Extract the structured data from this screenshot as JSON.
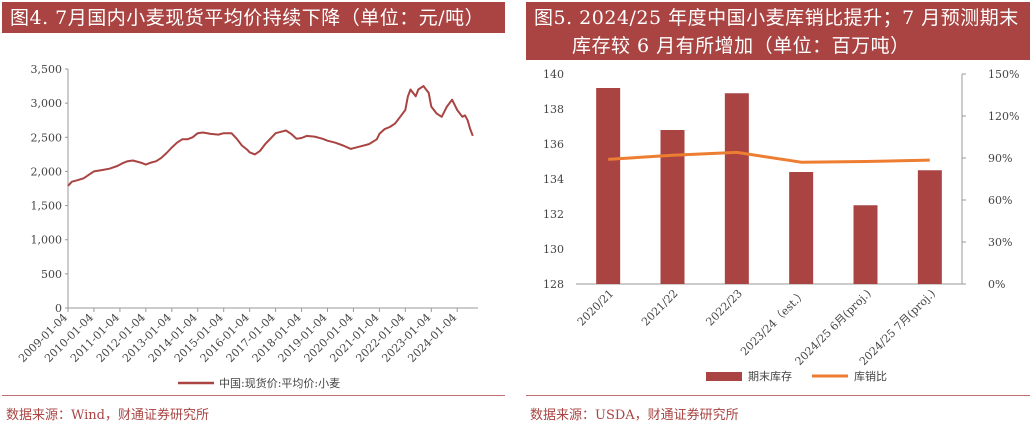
{
  "left": {
    "title": "图4. 7月国内小麦现货平均价持续下降（单位：元/吨）",
    "source": "数据来源：Wind，财通证券研究所"
  },
  "right": {
    "title_line1": "图5. 2024/25 年度中国小麦库销比提升；7 月预测期末",
    "title_line2": "库存较 6 月有所增加（单位：百万吨）",
    "source": "数据来源：USDA，财通证券研究所"
  },
  "colors": {
    "accent": "#a94442",
    "bar": "#a94442",
    "line": "#ed7d31"
  },
  "chart_data": [
    {
      "type": "line",
      "y_ticks": [
        "0",
        "500",
        "1,000",
        "1,500",
        "2,000",
        "2,500",
        "3,000",
        "3,500"
      ],
      "ylim": [
        0,
        3500
      ],
      "x_ticks": [
        "2009-01-04",
        "2010-01-04",
        "2011-01-04",
        "2012-01-04",
        "2013-01-04",
        "2014-01-04",
        "2015-01-04",
        "2016-01-04",
        "2017-01-04",
        "2018-01-04",
        "2019-01-04",
        "2020-01-04",
        "2021-01-04",
        "2022-01-04",
        "2023-01-04",
        "2024-01-04"
      ],
      "xlim": [
        2009.0,
        2024.8
      ],
      "legend_position": "bottom",
      "series": [
        {
          "name": "中国:现货价:平均价:小麦",
          "x": [
            2009.0,
            2009.15,
            2009.35,
            2009.6,
            2009.8,
            2010.0,
            2010.3,
            2010.6,
            2010.9,
            2011.1,
            2011.3,
            2011.5,
            2011.8,
            2012.0,
            2012.2,
            2012.4,
            2012.6,
            2012.8,
            2013.0,
            2013.2,
            2013.4,
            2013.6,
            2013.8,
            2014.0,
            2014.2,
            2014.5,
            2014.8,
            2015.0,
            2015.3,
            2015.5,
            2015.7,
            2015.9,
            2016.0,
            2016.2,
            2016.4,
            2016.6,
            2016.8,
            2017.0,
            2017.2,
            2017.4,
            2017.6,
            2017.8,
            2018.0,
            2018.2,
            2018.5,
            2018.8,
            2019.0,
            2019.3,
            2019.6,
            2019.9,
            2020.0,
            2020.3,
            2020.6,
            2020.9,
            2021.0,
            2021.2,
            2021.4,
            2021.6,
            2021.8,
            2022.0,
            2022.1,
            2022.2,
            2022.3,
            2022.4,
            2022.5,
            2022.7,
            2022.9,
            2023.0,
            2023.2,
            2023.4,
            2023.6,
            2023.8,
            2024.0,
            2024.2,
            2024.3,
            2024.4,
            2024.5,
            2024.6
          ],
          "y": [
            1790,
            1850,
            1870,
            1900,
            1950,
            2000,
            2020,
            2040,
            2080,
            2120,
            2150,
            2160,
            2130,
            2100,
            2130,
            2150,
            2200,
            2270,
            2350,
            2420,
            2470,
            2470,
            2500,
            2560,
            2570,
            2550,
            2540,
            2560,
            2560,
            2480,
            2380,
            2320,
            2280,
            2250,
            2300,
            2400,
            2480,
            2560,
            2580,
            2600,
            2550,
            2480,
            2490,
            2520,
            2510,
            2480,
            2450,
            2420,
            2380,
            2330,
            2340,
            2370,
            2400,
            2470,
            2550,
            2620,
            2650,
            2700,
            2800,
            2900,
            3100,
            3200,
            3150,
            3100,
            3200,
            3250,
            3150,
            2950,
            2850,
            2800,
            2950,
            3050,
            2900,
            2800,
            2820,
            2750,
            2620,
            2520
          ]
        }
      ]
    },
    {
      "type": "bar",
      "categories": [
        "2020/21",
        "2021/22",
        "2022/23",
        "2023/24（est.）",
        "2024/25 6月(proj.)",
        "2024/25 7月(proj.)"
      ],
      "y_ticks_left": [
        "128",
        "130",
        "132",
        "134",
        "136",
        "138",
        "140"
      ],
      "ylim_left": [
        128,
        140
      ],
      "y_ticks_right": [
        "0%",
        "30%",
        "60%",
        "90%",
        "120%",
        "150%"
      ],
      "ylim_right": [
        0,
        150
      ],
      "legend_position": "bottom",
      "series": [
        {
          "name": "期末库存",
          "axis": "left",
          "chart": "bar",
          "values": [
            139.2,
            136.8,
            138.9,
            134.4,
            132.5,
            134.5
          ]
        },
        {
          "name": "库销比",
          "axis": "right",
          "chart": "line",
          "values": [
            89,
            92,
            94,
            87,
            87.5,
            88.5
          ]
        }
      ]
    }
  ]
}
